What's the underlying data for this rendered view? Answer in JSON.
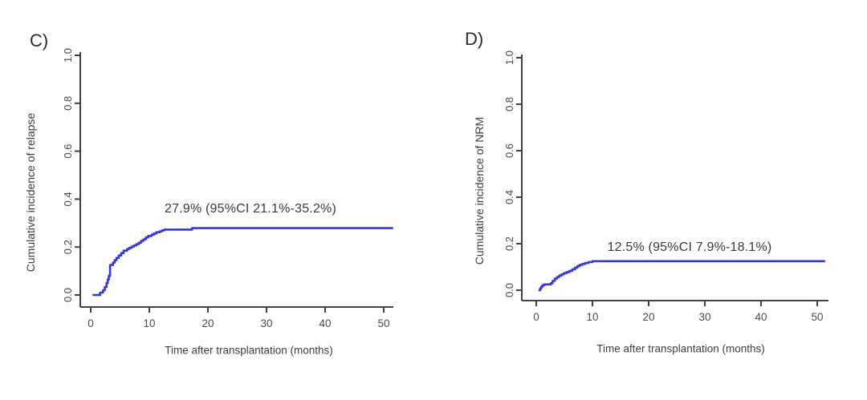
{
  "figure": {
    "colors": {
      "curve": "#3434e8",
      "axis": "#404040",
      "tick_text": "#4a4a4a",
      "label_text": "#3d3d3d",
      "background": "#ffffff"
    }
  },
  "chart_data": [
    {
      "type": "line",
      "subtype": "step",
      "panel_label": "C)",
      "title": "",
      "xlabel": "Time after transplantation (months)",
      "ylabel": "Cumulative incidence of relapse",
      "annotation": "27.9% (95%CI 21.1%-35.2%)",
      "estimate_pct": "27.9%",
      "ci95": "21.1%-35.2%",
      "xlim": [
        0,
        51.6
      ],
      "ylim": [
        0,
        1.0
      ],
      "x_ticks": [
        0,
        10,
        20,
        30,
        40,
        50
      ],
      "y_ticks": [
        0.0,
        0.2,
        0.4,
        0.6,
        0.8,
        1.0
      ],
      "grid": false,
      "legend": "none",
      "series": [
        {
          "name": "Cumulative incidence of relapse",
          "final_value": 0.279,
          "points": [
            [
              0.3,
              0
            ],
            [
              1.6,
              0.01
            ],
            [
              2.1,
              0.02
            ],
            [
              2.4,
              0.033
            ],
            [
              2.7,
              0.05
            ],
            [
              2.9,
              0.065
            ],
            [
              3.1,
              0.08
            ],
            [
              3.3,
              0.125
            ],
            [
              3.8,
              0.135
            ],
            [
              4.1,
              0.145
            ],
            [
              4.4,
              0.155
            ],
            [
              4.8,
              0.165
            ],
            [
              5.2,
              0.175
            ],
            [
              5.6,
              0.185
            ],
            [
              6.2,
              0.192
            ],
            [
              6.6,
              0.197
            ],
            [
              7.0,
              0.202
            ],
            [
              7.4,
              0.207
            ],
            [
              7.8,
              0.212
            ],
            [
              8.2,
              0.218
            ],
            [
              8.6,
              0.226
            ],
            [
              9.0,
              0.232
            ],
            [
              9.4,
              0.24
            ],
            [
              9.8,
              0.246
            ],
            [
              10.4,
              0.252
            ],
            [
              10.8,
              0.257
            ],
            [
              11.2,
              0.262
            ],
            [
              11.8,
              0.266
            ],
            [
              12.2,
              0.27
            ],
            [
              12.6,
              0.273
            ],
            [
              17.3,
              0.279
            ]
          ]
        }
      ]
    },
    {
      "type": "line",
      "subtype": "step",
      "panel_label": "D)",
      "title": "",
      "xlabel": "Time after transplantation (months)",
      "ylabel": "Cumulative incidence of NRM",
      "annotation": "12.5% (95%CI 7.9%-18.1%)",
      "estimate_pct": "12.5%",
      "ci95": "7.9%-18.1%",
      "xlim": [
        0,
        51.4
      ],
      "ylim": [
        0,
        1.0
      ],
      "x_ticks": [
        0,
        10,
        20,
        30,
        40,
        50
      ],
      "y_ticks": [
        0.0,
        0.2,
        0.4,
        0.6,
        0.8,
        1.0
      ],
      "grid": false,
      "legend": "none",
      "series": [
        {
          "name": "Cumulative incidence of NRM",
          "final_value": 0.125,
          "points": [
            [
              0.4,
              0
            ],
            [
              0.7,
              0.008
            ],
            [
              0.9,
              0.015
            ],
            [
              1.1,
              0.021
            ],
            [
              1.4,
              0.025
            ],
            [
              2.6,
              0.03
            ],
            [
              2.9,
              0.04
            ],
            [
              3.3,
              0.05
            ],
            [
              3.7,
              0.057
            ],
            [
              4.1,
              0.063
            ],
            [
              4.5,
              0.068
            ],
            [
              4.9,
              0.073
            ],
            [
              5.4,
              0.078
            ],
            [
              5.9,
              0.083
            ],
            [
              6.4,
              0.09
            ],
            [
              6.9,
              0.097
            ],
            [
              7.3,
              0.103
            ],
            [
              7.7,
              0.109
            ],
            [
              8.2,
              0.113
            ],
            [
              8.7,
              0.117
            ],
            [
              9.3,
              0.121
            ],
            [
              10.0,
              0.125
            ]
          ]
        }
      ]
    }
  ]
}
